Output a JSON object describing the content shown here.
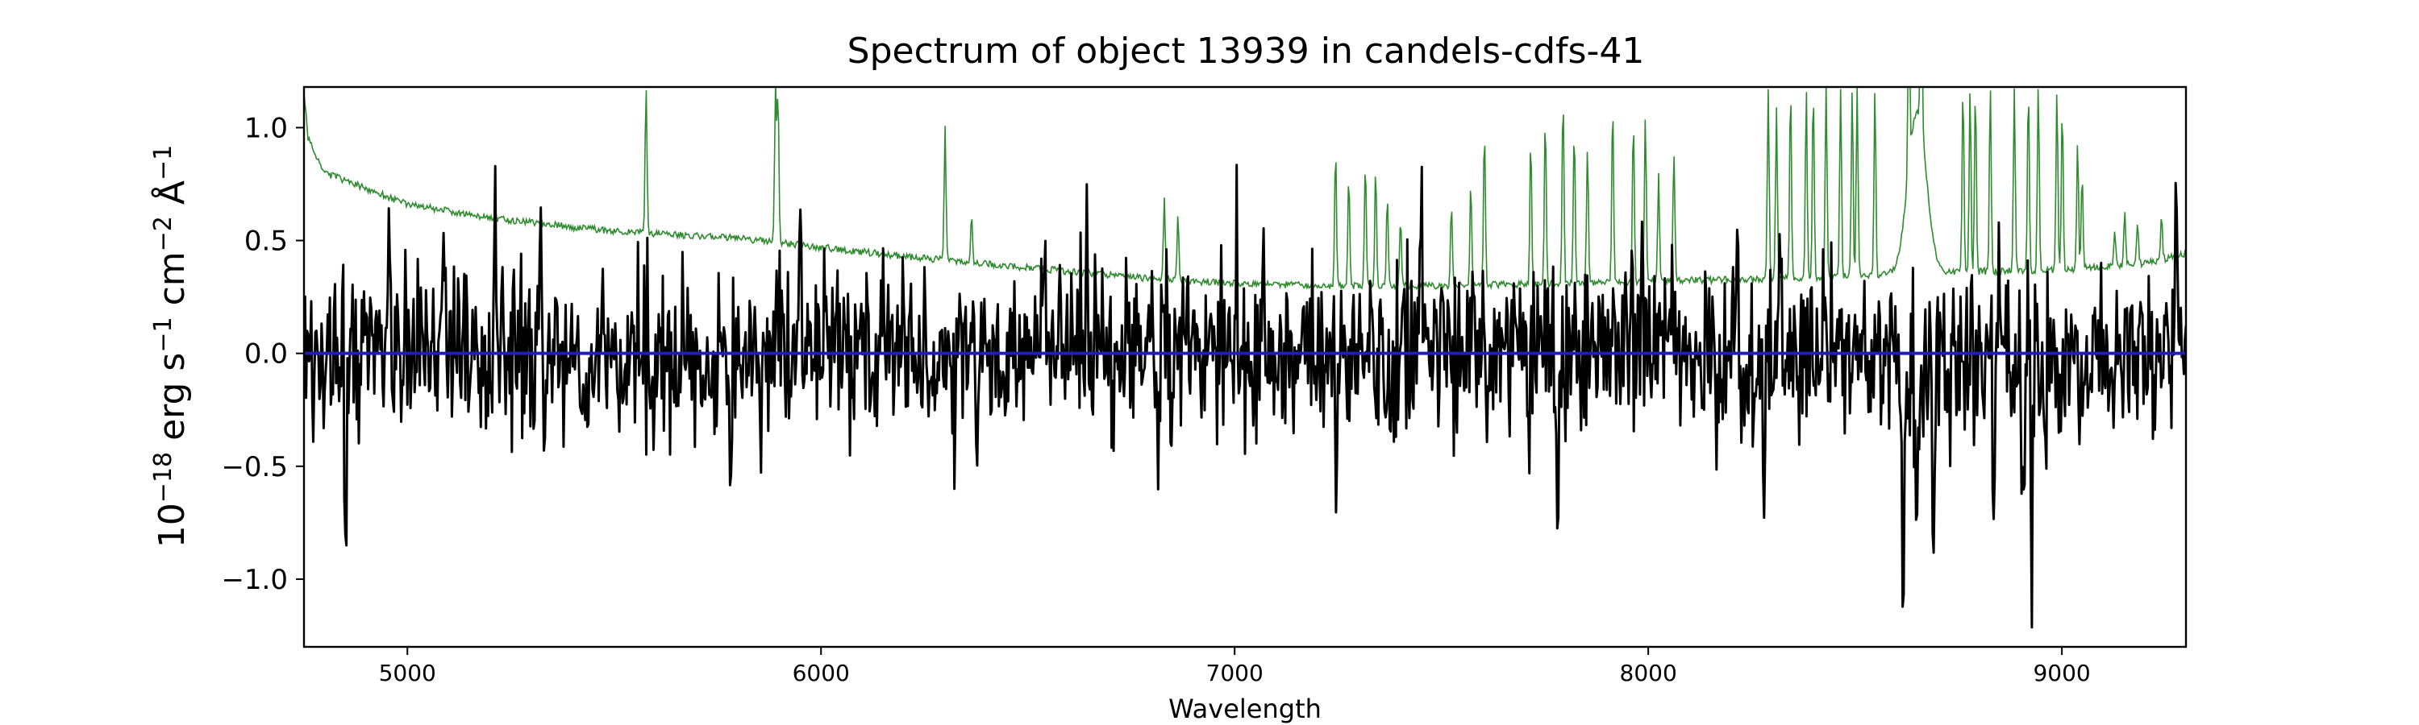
{
  "chart_data": {
    "type": "line",
    "title": "Spectrum of object 13939 in candels-cdfs-41",
    "xlabel": "Wavelength",
    "ylabel": {
      "base": "10",
      "exp1": "−18",
      "t1": " erg s",
      "exp2": "−1",
      "t2": " cm",
      "exp3": "−2",
      "t3": " Å",
      "exp4": "−1"
    },
    "xlim": [
      4750,
      9300
    ],
    "ylim": [
      -1.3,
      1.18
    ],
    "xticks": [
      5000,
      6000,
      7000,
      8000,
      9000
    ],
    "xtick_labels": [
      "5000",
      "6000",
      "7000",
      "8000",
      "9000"
    ],
    "yticks": [
      -1.0,
      -0.5,
      0.0,
      0.5,
      1.0
    ],
    "ytick_labels": [
      "−1.0",
      "−0.5",
      "0.0",
      "0.5",
      "1.0"
    ],
    "grid": false,
    "series": [
      {
        "role": "error",
        "color": "#2e8b2e",
        "continuum": [
          [
            4750,
            1.15
          ],
          [
            4760,
            0.95
          ],
          [
            4800,
            0.8
          ],
          [
            4900,
            0.73
          ],
          [
            5000,
            0.66
          ],
          [
            5200,
            0.6
          ],
          [
            5500,
            0.54
          ],
          [
            5800,
            0.51
          ],
          [
            6000,
            0.47
          ],
          [
            6200,
            0.43
          ],
          [
            6500,
            0.38
          ],
          [
            6800,
            0.33
          ],
          [
            7000,
            0.31
          ],
          [
            7200,
            0.3
          ],
          [
            7500,
            0.3
          ],
          [
            7800,
            0.31
          ],
          [
            8000,
            0.32
          ],
          [
            8300,
            0.33
          ],
          [
            8600,
            0.35
          ],
          [
            8700,
            0.36
          ],
          [
            9000,
            0.37
          ],
          [
            9200,
            0.4
          ],
          [
            9300,
            0.44
          ]
        ],
        "emission_lines": [
          [
            5577,
            1.18
          ],
          [
            5890,
            1.18
          ],
          [
            5896,
            1.15
          ],
          [
            6300,
            1.0
          ],
          [
            6364,
            0.62
          ],
          [
            6830,
            0.68
          ],
          [
            6863,
            0.6
          ],
          [
            7244,
            0.92
          ],
          [
            7276,
            0.8
          ],
          [
            7316,
            0.86
          ],
          [
            7341,
            0.82
          ],
          [
            7369,
            0.7
          ],
          [
            7401,
            0.6
          ],
          [
            7524,
            0.66
          ],
          [
            7571,
            0.75
          ],
          [
            7604,
            1.0
          ],
          [
            7716,
            0.95
          ],
          [
            7751,
            1.05
          ],
          [
            7794,
            1.15
          ],
          [
            7821,
            1.0
          ],
          [
            7853,
            0.92
          ],
          [
            7914,
            1.12
          ],
          [
            7964,
            1.05
          ],
          [
            7993,
            1.05
          ],
          [
            8025,
            0.8
          ],
          [
            8062,
            0.9
          ],
          [
            8290,
            1.18
          ],
          [
            8310,
            1.1
          ],
          [
            8344,
            1.18
          ],
          [
            8382,
            1.18
          ],
          [
            8399,
            1.18
          ],
          [
            8430,
            1.18
          ],
          [
            8465,
            1.18
          ],
          [
            8493,
            1.18
          ],
          [
            8505,
            1.18
          ],
          [
            8548,
            1.18
          ],
          [
            8630,
            1.05
          ],
          [
            8660,
            1.1
          ],
          [
            8761,
            1.18
          ],
          [
            8778,
            1.18
          ],
          [
            8791,
            1.18
          ],
          [
            8827,
            1.18
          ],
          [
            8885,
            1.18
          ],
          [
            8919,
            1.18
          ],
          [
            8943,
            1.18
          ],
          [
            8988,
            1.18
          ],
          [
            9001,
            1.1
          ],
          [
            9038,
            0.95
          ],
          [
            9049,
            0.8
          ],
          [
            9128,
            0.55
          ],
          [
            9152,
            0.62
          ],
          [
            9183,
            0.58
          ],
          [
            9241,
            0.6
          ]
        ],
        "broad_feature": {
          "center": 8650,
          "height": 0.72,
          "sigma": 22
        }
      },
      {
        "role": "flux",
        "color": "#000000",
        "noise_rms": 0.19,
        "features": [
          [
            4851,
            -0.64
          ],
          [
            4956,
            0.67
          ],
          [
            5087,
            0.76
          ],
          [
            5212,
            0.68
          ],
          [
            5320,
            0.76
          ],
          [
            5332,
            -0.52
          ],
          [
            5780,
            -0.63
          ],
          [
            5950,
            0.48
          ],
          [
            6148,
            0.46
          ],
          [
            6323,
            -0.5
          ],
          [
            6539,
            0.5
          ],
          [
            6642,
            0.55
          ],
          [
            6815,
            -0.48
          ],
          [
            7006,
            0.48
          ],
          [
            7245,
            -0.55
          ],
          [
            7450,
            0.52
          ],
          [
            7710,
            -0.61
          ],
          [
            7780,
            -0.63
          ],
          [
            7985,
            0.55
          ],
          [
            8215,
            0.52
          ],
          [
            8280,
            -0.53
          ],
          [
            8321,
            0.52
          ],
          [
            8615,
            -1.18
          ],
          [
            8650,
            -0.6
          ],
          [
            8690,
            -0.72
          ],
          [
            8810,
            -0.55
          ],
          [
            8836,
            -0.86
          ],
          [
            8850,
            0.5
          ],
          [
            8880,
            -0.56
          ],
          [
            8907,
            -0.93
          ],
          [
            8927,
            -0.87
          ],
          [
            8960,
            -0.57
          ],
          [
            9277,
            0.72
          ]
        ]
      },
      {
        "role": "model",
        "color": "#1f1fb4",
        "value": 0.0
      }
    ]
  }
}
